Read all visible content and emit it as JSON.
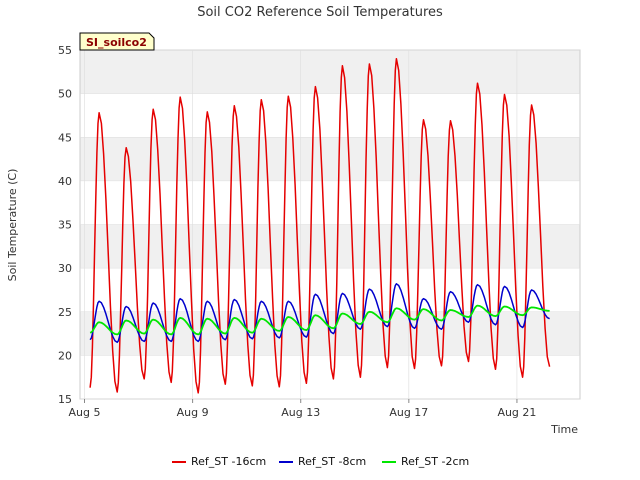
{
  "chart_data": {
    "type": "line",
    "title": "Soil CO2 Reference Soil Temperatures",
    "xlabel": "Time",
    "ylabel": "Soil Temperature (C)",
    "site_badge": "SI_soilco2",
    "ylim": [
      15,
      55
    ],
    "yticks": [
      15,
      20,
      25,
      30,
      35,
      40,
      45,
      50,
      55
    ],
    "xlim": [
      "2023-08-04T20:00",
      "2023-08-23T08:00"
    ],
    "xticks": [
      {
        "date": "2023-08-05",
        "label": "Aug 5"
      },
      {
        "date": "2023-08-09",
        "label": "Aug 9"
      },
      {
        "date": "2023-08-13",
        "label": "Aug 13"
      },
      {
        "date": "2023-08-17",
        "label": "Aug 17"
      },
      {
        "date": "2023-08-21",
        "label": "Aug 21"
      }
    ],
    "grid": true,
    "band_shading": true,
    "legend_position": "bottom",
    "colors": {
      "background": "#ffffff",
      "plot_band": "#f0f0f0",
      "grid": "#dddddd",
      "badge_fill": "#ffffcc"
    },
    "series": [
      {
        "name": "Ref_ST -16cm",
        "color": "#e50000",
        "daily": [
          {
            "date": "2023-08-05",
            "min": 16.3,
            "max": 47.8
          },
          {
            "date": "2023-08-06",
            "min": 15.8,
            "max": 43.8
          },
          {
            "date": "2023-08-07",
            "min": 17.3,
            "max": 48.2
          },
          {
            "date": "2023-08-08",
            "min": 16.9,
            "max": 49.6
          },
          {
            "date": "2023-08-09",
            "min": 15.7,
            "max": 47.9
          },
          {
            "date": "2023-08-10",
            "min": 16.7,
            "max": 48.6
          },
          {
            "date": "2023-08-11",
            "min": 16.5,
            "max": 49.3
          },
          {
            "date": "2023-08-12",
            "min": 16.4,
            "max": 49.7
          },
          {
            "date": "2023-08-13",
            "min": 16.8,
            "max": 50.8
          },
          {
            "date": "2023-08-14",
            "min": 17.3,
            "max": 53.2
          },
          {
            "date": "2023-08-15",
            "min": 17.5,
            "max": 53.4
          },
          {
            "date": "2023-08-16",
            "min": 18.6,
            "max": 54.0
          },
          {
            "date": "2023-08-17",
            "min": 18.5,
            "max": 47.0
          },
          {
            "date": "2023-08-18",
            "min": 18.8,
            "max": 46.9
          },
          {
            "date": "2023-08-19",
            "min": 19.3,
            "max": 51.2
          },
          {
            "date": "2023-08-20",
            "min": 18.4,
            "max": 49.9
          },
          {
            "date": "2023-08-21",
            "min": 17.5,
            "max": 48.7
          },
          {
            "date": "2023-08-22",
            "min": 18.7,
            "max": 18.7
          }
        ]
      },
      {
        "name": "Ref_ST -8cm",
        "color": "#0000cc",
        "daily": [
          {
            "date": "2023-08-05",
            "min": 21.8,
            "max": 26.2
          },
          {
            "date": "2023-08-06",
            "min": 21.5,
            "max": 25.6
          },
          {
            "date": "2023-08-07",
            "min": 21.6,
            "max": 26.0
          },
          {
            "date": "2023-08-08",
            "min": 21.6,
            "max": 26.5
          },
          {
            "date": "2023-08-09",
            "min": 21.6,
            "max": 26.2
          },
          {
            "date": "2023-08-10",
            "min": 21.8,
            "max": 26.4
          },
          {
            "date": "2023-08-11",
            "min": 21.9,
            "max": 26.2
          },
          {
            "date": "2023-08-12",
            "min": 22.0,
            "max": 26.2
          },
          {
            "date": "2023-08-13",
            "min": 22.1,
            "max": 27.0
          },
          {
            "date": "2023-08-14",
            "min": 22.5,
            "max": 27.1
          },
          {
            "date": "2023-08-15",
            "min": 23.0,
            "max": 27.6
          },
          {
            "date": "2023-08-16",
            "min": 23.3,
            "max": 28.2
          },
          {
            "date": "2023-08-17",
            "min": 23.1,
            "max": 26.5
          },
          {
            "date": "2023-08-18",
            "min": 23.0,
            "max": 27.3
          },
          {
            "date": "2023-08-19",
            "min": 23.8,
            "max": 28.1
          },
          {
            "date": "2023-08-20",
            "min": 23.5,
            "max": 27.9
          },
          {
            "date": "2023-08-21",
            "min": 23.2,
            "max": 27.5
          },
          {
            "date": "2023-08-22",
            "min": 24.2,
            "max": 24.2
          }
        ]
      },
      {
        "name": "Ref_ST -2cm",
        "color": "#00e600",
        "daily": [
          {
            "date": "2023-08-05",
            "min": 22.6,
            "max": 23.8
          },
          {
            "date": "2023-08-06",
            "min": 22.4,
            "max": 24.0
          },
          {
            "date": "2023-08-07",
            "min": 22.5,
            "max": 24.1
          },
          {
            "date": "2023-08-08",
            "min": 22.4,
            "max": 24.3
          },
          {
            "date": "2023-08-09",
            "min": 22.4,
            "max": 24.2
          },
          {
            "date": "2023-08-10",
            "min": 22.5,
            "max": 24.3
          },
          {
            "date": "2023-08-11",
            "min": 22.6,
            "max": 24.2
          },
          {
            "date": "2023-08-12",
            "min": 22.8,
            "max": 24.4
          },
          {
            "date": "2023-08-13",
            "min": 22.9,
            "max": 24.6
          },
          {
            "date": "2023-08-14",
            "min": 23.1,
            "max": 24.8
          },
          {
            "date": "2023-08-15",
            "min": 23.6,
            "max": 25.0
          },
          {
            "date": "2023-08-16",
            "min": 23.8,
            "max": 25.4
          },
          {
            "date": "2023-08-17",
            "min": 24.1,
            "max": 25.3
          },
          {
            "date": "2023-08-18",
            "min": 24.0,
            "max": 25.2
          },
          {
            "date": "2023-08-19",
            "min": 24.4,
            "max": 25.7
          },
          {
            "date": "2023-08-20",
            "min": 24.5,
            "max": 25.6
          },
          {
            "date": "2023-08-21",
            "min": 24.6,
            "max": 25.5
          },
          {
            "date": "2023-08-22",
            "min": 25.1,
            "max": 25.1
          }
        ]
      }
    ]
  }
}
